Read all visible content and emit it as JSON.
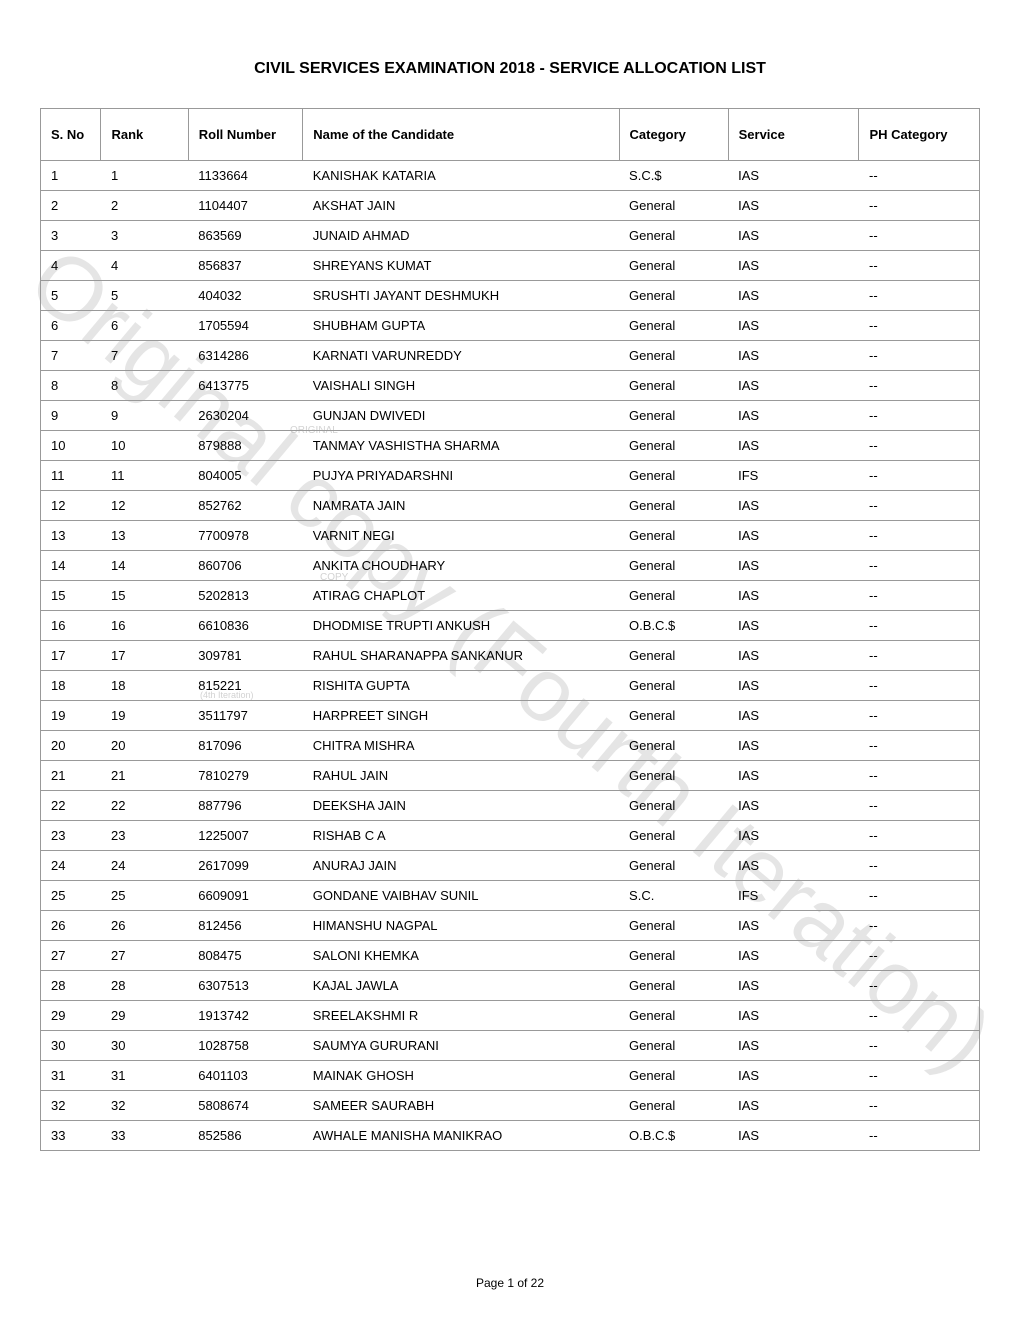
{
  "title": "CIVIL SERVICES EXAMINATION 2018 - SERVICE ALLOCATION LIST",
  "watermark_main": "Original copy (Fourth Iteration)",
  "watermark_small1": "ORIGINAL",
  "watermark_small2": "COPY",
  "watermark_small3": "(4th Iteration)",
  "footer": "Page 1 of 22",
  "table": {
    "columns": [
      "S. No",
      "Rank",
      "Roll Number",
      "Name of the Candidate",
      "Category",
      "Service",
      "PH Category"
    ],
    "rows": [
      [
        "1",
        "1",
        "1133664",
        "KANISHAK KATARIA",
        "S.C.$",
        "IAS",
        "--"
      ],
      [
        "2",
        "2",
        "1104407",
        "AKSHAT JAIN",
        "General",
        "IAS",
        "--"
      ],
      [
        "3",
        "3",
        "863569",
        "JUNAID AHMAD",
        "General",
        "IAS",
        "--"
      ],
      [
        "4",
        "4",
        "856837",
        "SHREYANS KUMAT",
        "General",
        "IAS",
        "--"
      ],
      [
        "5",
        "5",
        "404032",
        "SRUSHTI JAYANT DESHMUKH",
        "General",
        "IAS",
        "--"
      ],
      [
        "6",
        "6",
        "1705594",
        "SHUBHAM GUPTA",
        "General",
        "IAS",
        "--"
      ],
      [
        "7",
        "7",
        "6314286",
        "KARNATI VARUNREDDY",
        "General",
        "IAS",
        "--"
      ],
      [
        "8",
        "8",
        "6413775",
        "VAISHALI SINGH",
        "General",
        "IAS",
        "--"
      ],
      [
        "9",
        "9",
        "2630204",
        "GUNJAN DWIVEDI",
        "General",
        "IAS",
        "--"
      ],
      [
        "10",
        "10",
        "879888",
        "TANMAY VASHISTHA SHARMA",
        "General",
        "IAS",
        "--"
      ],
      [
        "11",
        "11",
        "804005",
        "PUJYA PRIYADARSHNI",
        "General",
        "IFS",
        "--"
      ],
      [
        "12",
        "12",
        "852762",
        "NAMRATA JAIN",
        "General",
        "IAS",
        "--"
      ],
      [
        "13",
        "13",
        "7700978",
        "VARNIT NEGI",
        "General",
        "IAS",
        "--"
      ],
      [
        "14",
        "14",
        "860706",
        "ANKITA CHOUDHARY",
        "General",
        "IAS",
        "--"
      ],
      [
        "15",
        "15",
        "5202813",
        "ATIRAG CHAPLOT",
        "General",
        "IAS",
        "--"
      ],
      [
        "16",
        "16",
        "6610836",
        "DHODMISE TRUPTI ANKUSH",
        "O.B.C.$",
        "IAS",
        "--"
      ],
      [
        "17",
        "17",
        "309781",
        "RAHUL SHARANAPPA SANKANUR",
        "General",
        "IAS",
        "--"
      ],
      [
        "18",
        "18",
        "815221",
        "RISHITA GUPTA",
        "General",
        "IAS",
        "--"
      ],
      [
        "19",
        "19",
        "3511797",
        "HARPREET SINGH",
        "General",
        "IAS",
        "--"
      ],
      [
        "20",
        "20",
        "817096",
        "CHITRA MISHRA",
        "General",
        "IAS",
        "--"
      ],
      [
        "21",
        "21",
        "7810279",
        "RAHUL JAIN",
        "General",
        "IAS",
        "--"
      ],
      [
        "22",
        "22",
        "887796",
        "DEEKSHA JAIN",
        "General",
        "IAS",
        "--"
      ],
      [
        "23",
        "23",
        "1225007",
        "RISHAB C A",
        "General",
        "IAS",
        "--"
      ],
      [
        "24",
        "24",
        "2617099",
        "ANURAJ JAIN",
        "General",
        "IAS",
        "--"
      ],
      [
        "25",
        "25",
        "6609091",
        "GONDANE VAIBHAV SUNIL",
        "S.C.",
        "IFS",
        "--"
      ],
      [
        "26",
        "26",
        "812456",
        "HIMANSHU NAGPAL",
        "General",
        "IAS",
        "--"
      ],
      [
        "27",
        "27",
        "808475",
        "SALONI KHEMKA",
        "General",
        "IAS",
        "--"
      ],
      [
        "28",
        "28",
        "6307513",
        "KAJAL JAWLA",
        "General",
        "IAS",
        "--"
      ],
      [
        "29",
        "29",
        "1913742",
        "SREELAKSHMI R",
        "General",
        "IAS",
        "--"
      ],
      [
        "30",
        "30",
        "1028758",
        "SAUMYA GURURANI",
        "General",
        "IAS",
        "--"
      ],
      [
        "31",
        "31",
        "6401103",
        "MAINAK GHOSH",
        "General",
        "IAS",
        "--"
      ],
      [
        "32",
        "32",
        "5808674",
        "SAMEER SAURABH",
        "General",
        "IAS",
        "--"
      ],
      [
        "33",
        "33",
        "852586",
        "AWHALE MANISHA MANIKRAO",
        "O.B.C.$",
        "IAS",
        "--"
      ]
    ]
  }
}
